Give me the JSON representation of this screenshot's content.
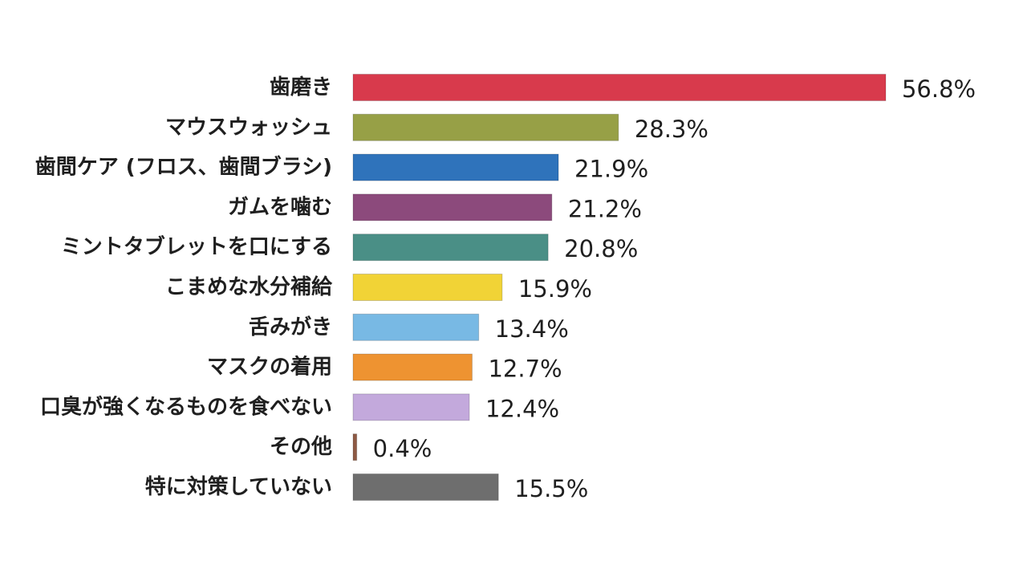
{
  "chart_data": {
    "type": "bar",
    "orientation": "horizontal",
    "unit": "%",
    "categories": [
      "歯磨き",
      "マウスウォッシュ",
      "歯間ケア (フロス、歯間ブラシ)",
      "ガムを噛む",
      "ミントタブレットを口にする",
      "こまめな水分補給",
      "舌みがき",
      "マスクの着用",
      "口臭が強くなるものを食べない",
      "その他",
      "特に対策していない"
    ],
    "values": [
      56.8,
      28.3,
      21.9,
      21.2,
      20.8,
      15.9,
      13.4,
      12.7,
      12.4,
      0.4,
      15.5
    ],
    "value_labels": [
      "56.8%",
      "28.3%",
      "21.9%",
      "21.2%",
      "20.8%",
      "15.9%",
      "13.4%",
      "12.7%",
      "12.4%",
      "0.4%",
      "15.5%"
    ],
    "colors": [
      "#d83a4c",
      "#97a046",
      "#2f73bb",
      "#8c4a7c",
      "#4a8f86",
      "#f1d336",
      "#78b9e4",
      "#ee9331",
      "#c3a9dc",
      "#8e5a44",
      "#6e6e6e"
    ],
    "grid": false,
    "legend": "none"
  }
}
